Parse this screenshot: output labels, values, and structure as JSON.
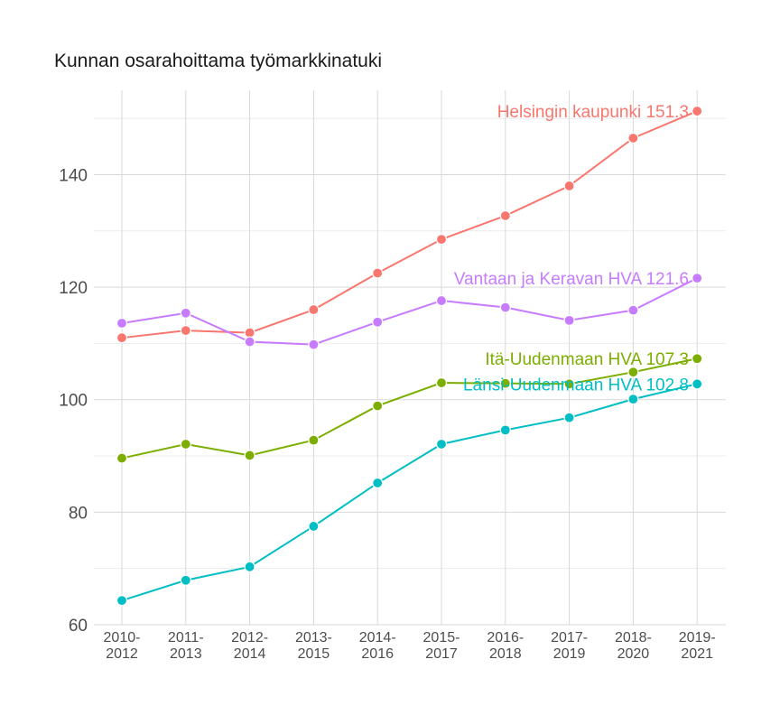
{
  "chart_data": {
    "type": "line",
    "title": "Kunnan osarahoittama työmarkkinatuki",
    "xlabel": "",
    "ylabel": "",
    "categories": [
      [
        "2010-",
        "2012"
      ],
      [
        "2011-",
        "2013"
      ],
      [
        "2012-",
        "2014"
      ],
      [
        "2013-",
        "2015"
      ],
      [
        "2014-",
        "2016"
      ],
      [
        "2015-",
        "2017"
      ],
      [
        "2016-",
        "2018"
      ],
      [
        "2017-",
        "2019"
      ],
      [
        "2018-",
        "2020"
      ],
      [
        "2019-",
        "2021"
      ]
    ],
    "ylim": [
      60,
      155
    ],
    "yticks": [
      60,
      80,
      100,
      120,
      140
    ],
    "grid": true,
    "legend": "none (direct end labels)",
    "series": [
      {
        "name": "Helsingin kaupunki",
        "color": "#F8766D",
        "end_label": "Helsingin kaupunki 151.3",
        "values": [
          111.0,
          112.3,
          111.9,
          116.0,
          122.5,
          128.5,
          132.7,
          138.0,
          146.5,
          151.3
        ]
      },
      {
        "name": "Vantaan ja Keravan HVA",
        "color": "#C77CFF",
        "end_label": "Vantaan ja Keravan HVA 121.6",
        "values": [
          113.6,
          115.4,
          110.3,
          109.8,
          113.8,
          117.6,
          116.4,
          114.1,
          115.9,
          121.6
        ]
      },
      {
        "name": "Itä-Uudenmaan HVA",
        "color": "#7CAE00",
        "end_label": "Itä-Uudenmaan HVA 107.3",
        "values": [
          89.6,
          92.1,
          90.1,
          92.8,
          98.9,
          103.0,
          102.9,
          102.8,
          104.9,
          107.3
        ]
      },
      {
        "name": "Länsi-Uudenmaan HVA",
        "color": "#00BFC4",
        "end_label": "Länsi-Uudenmaan HVA 102.8",
        "values": [
          64.3,
          67.9,
          70.3,
          77.5,
          85.2,
          92.1,
          94.6,
          96.8,
          100.1,
          102.8
        ]
      }
    ]
  }
}
